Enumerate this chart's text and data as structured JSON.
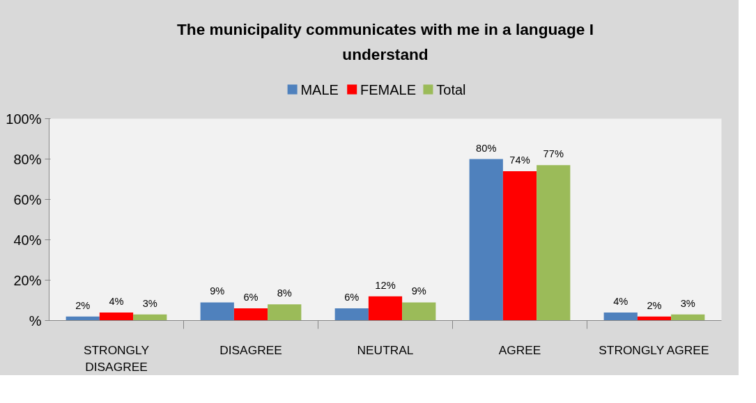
{
  "chart_data": {
    "type": "bar",
    "title": "The municipality communicates with me in a language I understand",
    "categories": [
      "STRONGLY DISAGREE",
      "DISAGREE",
      "NEUTRAL",
      "AGREE",
      "STRONGLY AGREE"
    ],
    "series": [
      {
        "name": "MALE",
        "color": "#4f81bd",
        "values": [
          2,
          9,
          6,
          80,
          4
        ],
        "value_labels": [
          "2%",
          "9%",
          "6%",
          "80%",
          "4%"
        ]
      },
      {
        "name": "FEMALE",
        "color": "#ff0000",
        "values": [
          4,
          6,
          12,
          74,
          2
        ],
        "value_labels": [
          "4%",
          "6%",
          "12%",
          "74%",
          "2%"
        ]
      },
      {
        "name": "Total",
        "color": "#9bbb59",
        "values": [
          3,
          8,
          9,
          77,
          3
        ],
        "value_labels": [
          "3%",
          "8%",
          "9%",
          "77%",
          "3%"
        ]
      }
    ],
    "ylim": [
      0,
      100
    ],
    "yticks": [
      {
        "value": 0,
        "label": "%"
      },
      {
        "value": 20,
        "label": "20%"
      },
      {
        "value": 40,
        "label": "40%"
      },
      {
        "value": 60,
        "label": "60%"
      },
      {
        "value": 80,
        "label": "80%"
      },
      {
        "value": 100,
        "label": "100%"
      }
    ],
    "grid": false,
    "legend": "top"
  }
}
